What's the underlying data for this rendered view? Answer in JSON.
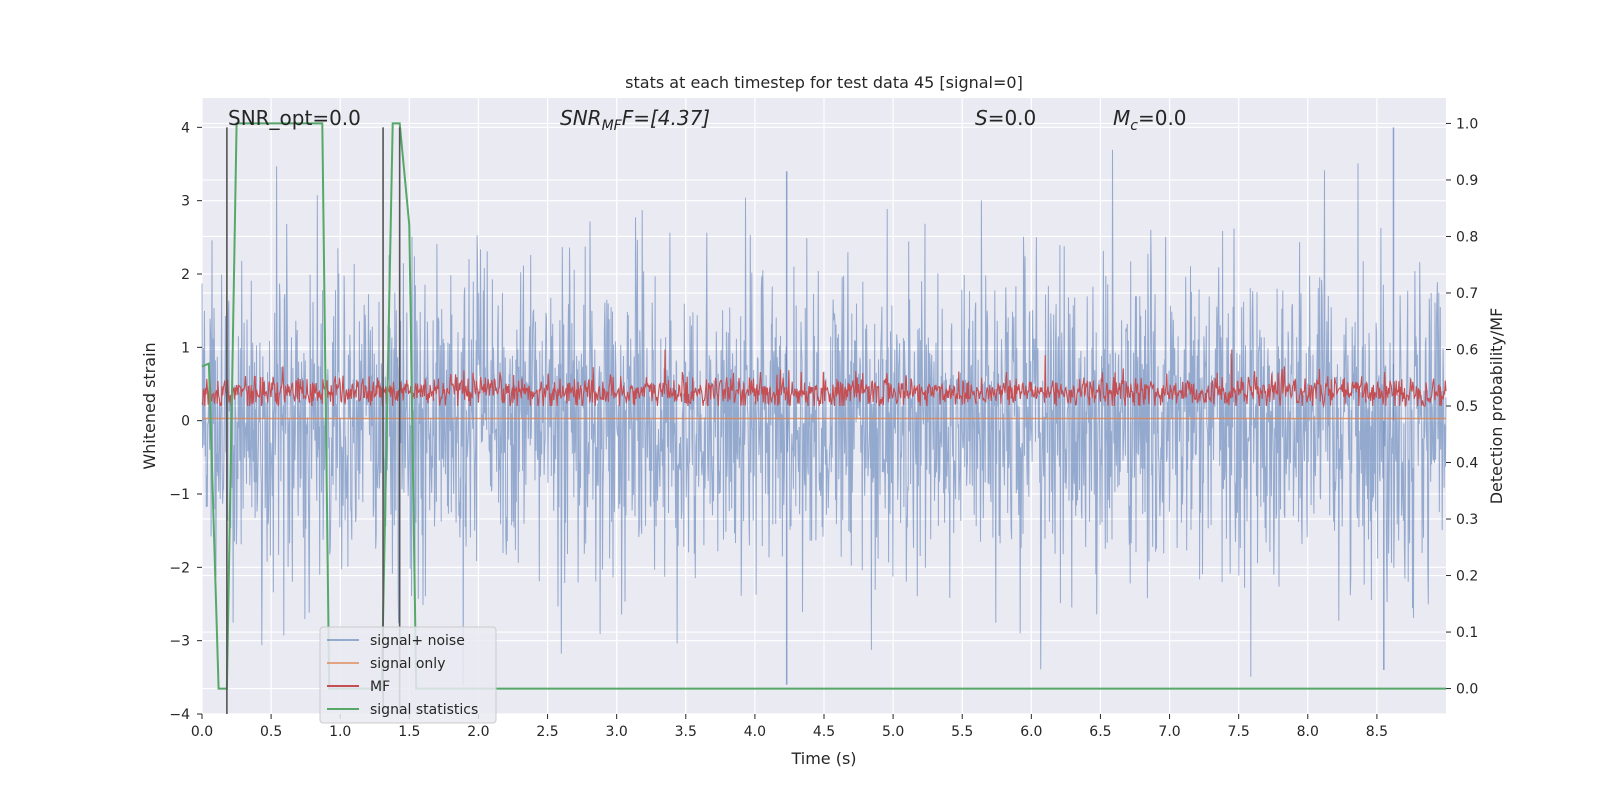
{
  "chart_data": {
    "type": "line",
    "title": "stats at each timestep for test data 45 [signal=0]",
    "xlabel": "Time (s)",
    "ylabel": "Whitened strain",
    "y2label": "Detection probability/MF",
    "xlim": [
      0.0,
      9.0
    ],
    "ylim": [
      -4.0,
      4.4
    ],
    "y2lim": [
      -0.045,
      1.045
    ],
    "xticks": [
      "0.0",
      "0.5",
      "1.0",
      "1.5",
      "2.0",
      "2.5",
      "3.0",
      "3.5",
      "4.0",
      "4.5",
      "5.0",
      "5.5",
      "6.0",
      "6.5",
      "7.0",
      "7.5",
      "8.0",
      "8.5"
    ],
    "yticks": [
      "4",
      "3",
      "2",
      "1",
      "0",
      "−1",
      "−2",
      "−3",
      "−4"
    ],
    "y2ticks": [
      "1.0",
      "0.9",
      "0.8",
      "0.7",
      "0.6",
      "0.5",
      "0.4",
      "0.3",
      "0.2",
      "0.1",
      "0.0"
    ],
    "grid": true,
    "legend_position": "lower-left",
    "annotations": {
      "snr_opt": "SNR_opt=0.0",
      "snr_mf_base": "SNR",
      "snr_mf_sub": "MF",
      "snr_mf_rest": "F=[4.37]",
      "s_main": "S",
      "s_rest": "=0.0",
      "mc_main": "M",
      "mc_sub": "c",
      "mc_rest": "=0.0"
    },
    "series": [
      {
        "name": "signal+ noise",
        "color": "#4c72b0",
        "axis": "left",
        "description_range": [
          -3.6,
          4.0
        ],
        "notable_peaks": [
          {
            "x": 4.23,
            "y": -3.6
          },
          {
            "x": 8.62,
            "y": 4.0
          },
          {
            "x": 4.23,
            "y": 3.4
          },
          {
            "x": 8.55,
            "y": -3.4
          }
        ]
      },
      {
        "name": "signal only",
        "color": "#dd8452",
        "axis": "left",
        "constant_value": 0.03
      },
      {
        "name": "MF",
        "color": "#c44e52",
        "axis": "right",
        "typical_range": [
          0.5,
          0.56
        ],
        "notable_peaks": [
          {
            "x": 3.35,
            "y": 0.6
          },
          {
            "x": 7.45,
            "y": 0.6
          },
          {
            "x": 6.1,
            "y": 0.59
          }
        ]
      },
      {
        "name": "signal statistics",
        "color": "#55a868",
        "axis": "right",
        "x": [
          0.0,
          0.05,
          0.12,
          0.18,
          0.25,
          0.87,
          0.92,
          1.3,
          1.38,
          1.43,
          1.5,
          1.55,
          9.0
        ],
        "values": [
          0.57,
          0.575,
          0.0,
          0.0,
          1.0,
          1.0,
          0.0,
          0.0,
          1.0,
          1.0,
          0.82,
          0.0,
          0.0
        ]
      },
      {
        "name": "",
        "color": "#555555",
        "axis": "left",
        "type": "vlines",
        "x": [
          0.18,
          1.31,
          1.43
        ],
        "ymin": -4.0,
        "ymax": 4.0
      }
    ]
  }
}
